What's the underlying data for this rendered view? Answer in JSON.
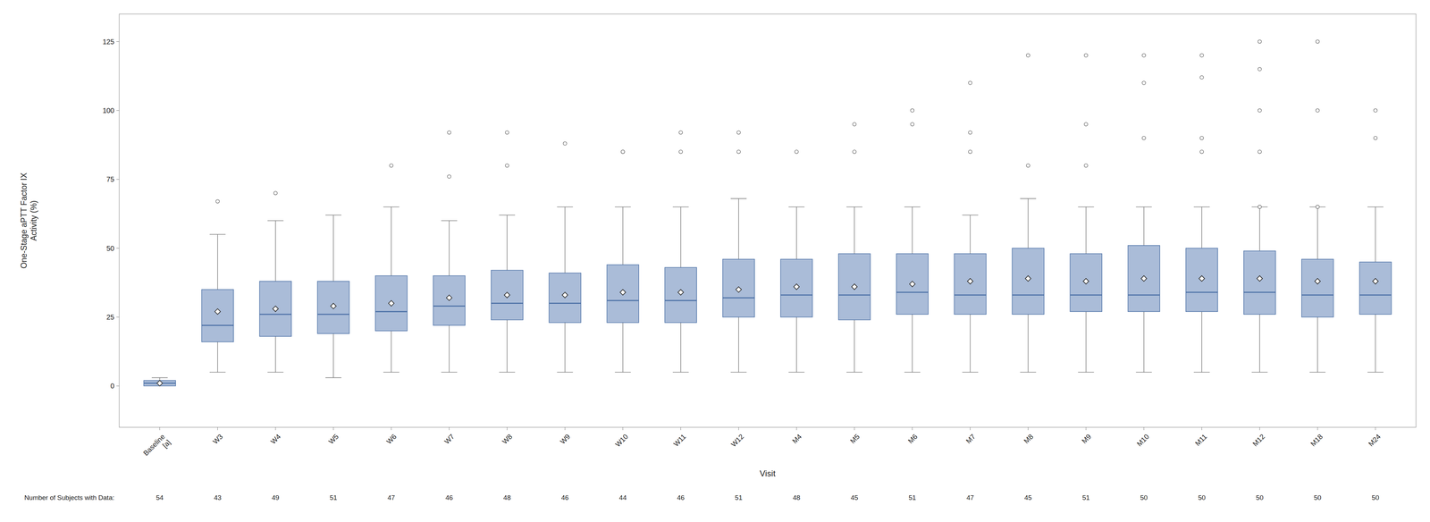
{
  "chart_data": {
    "type": "box",
    "xlabel": "Visit",
    "ylabel": "One-Stage aPTT Factor IX\nActivity (%)",
    "categories": [
      "Baseline\n[a]",
      "W3",
      "W4",
      "W5",
      "W6",
      "W7",
      "W8",
      "W9",
      "W10",
      "W11",
      "W12",
      "M4",
      "M5",
      "M6",
      "M7",
      "M8",
      "M9",
      "M10",
      "M11",
      "M12",
      "M18",
      "M24"
    ],
    "whislo": [
      0,
      5,
      5,
      3,
      5,
      5,
      5,
      5,
      5,
      5,
      5,
      5,
      5,
      5,
      5,
      5,
      5,
      5,
      5,
      5,
      5,
      5
    ],
    "q1": [
      0,
      16,
      18,
      19,
      20,
      22,
      24,
      23,
      23,
      23,
      25,
      25,
      24,
      26,
      26,
      26,
      27,
      27,
      27,
      26,
      25,
      26
    ],
    "med": [
      1,
      22,
      26,
      26,
      27,
      29,
      30,
      30,
      31,
      31,
      32,
      33,
      33,
      34,
      33,
      33,
      33,
      33,
      34,
      34,
      33,
      33
    ],
    "mean": [
      1,
      27,
      28,
      29,
      30,
      32,
      33,
      33,
      34,
      34,
      35,
      36,
      36,
      37,
      38,
      39,
      38,
      39,
      39,
      39,
      38,
      38
    ],
    "q3": [
      2,
      35,
      38,
      38,
      40,
      40,
      42,
      41,
      44,
      43,
      46,
      46,
      48,
      48,
      48,
      50,
      48,
      51,
      50,
      49,
      46,
      45
    ],
    "whishi": [
      3,
      55,
      60,
      62,
      65,
      60,
      62,
      65,
      65,
      65,
      68,
      65,
      65,
      65,
      62,
      68,
      65,
      65,
      65,
      65,
      65,
      65
    ],
    "fliers": [
      [],
      [
        67
      ],
      [
        70
      ],
      [],
      [
        80
      ],
      [
        76,
        92
      ],
      [
        80,
        92
      ],
      [
        88
      ],
      [
        85,
        85
      ],
      [
        85,
        92
      ],
      [
        85,
        92
      ],
      [
        85
      ],
      [
        85,
        95
      ],
      [
        95,
        100
      ],
      [
        85,
        92,
        110
      ],
      [
        80,
        120
      ],
      [
        80,
        95,
        120
      ],
      [
        90,
        110,
        120
      ],
      [
        85,
        90,
        112,
        120
      ],
      [
        65,
        85,
        100,
        115,
        125
      ],
      [
        65,
        100,
        125
      ],
      [
        90,
        100
      ]
    ],
    "n_label": "Number of Subjects with Data:",
    "n_subjects": [
      54,
      43,
      49,
      51,
      47,
      46,
      48,
      46,
      44,
      46,
      51,
      48,
      45,
      51,
      47,
      45,
      51,
      50,
      50,
      50,
      50,
      50
    ],
    "ylim": [
      -15,
      135
    ],
    "yticks": [
      0,
      25,
      50,
      75,
      100,
      125
    ],
    "color": "#aabcd8",
    "grid": false
  }
}
